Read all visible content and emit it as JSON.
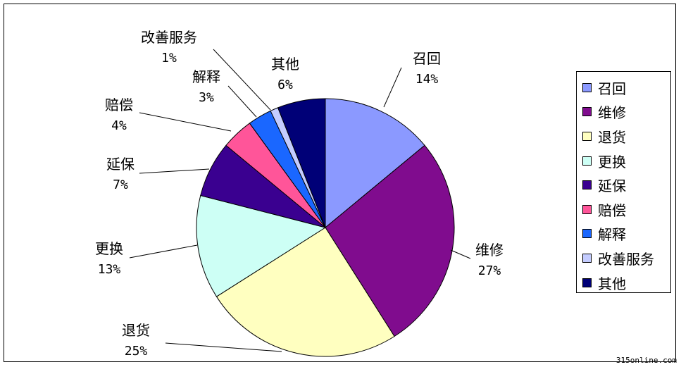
{
  "chart_data": {
    "type": "pie",
    "title": "",
    "legend_position": "right",
    "slices": [
      {
        "label": "召回",
        "value": 14,
        "value_label": "14%",
        "color": "#8b99ff"
      },
      {
        "label": "维修",
        "value": 27,
        "value_label": "27%",
        "color": "#800c8e"
      },
      {
        "label": "退货",
        "value": 25,
        "value_label": "25%",
        "color": "#ffffc0"
      },
      {
        "label": "更换",
        "value": 13,
        "value_label": "13%",
        "color": "#cdfff5"
      },
      {
        "label": "延保",
        "value": 7,
        "value_label": "7%",
        "color": "#3a0090"
      },
      {
        "label": "赔偿",
        "value": 4,
        "value_label": "4%",
        "color": "#ff5599"
      },
      {
        "label": "解释",
        "value": 3,
        "value_label": "3%",
        "color": "#1a67ff"
      },
      {
        "label": "改善服务",
        "value": 1,
        "value_label": "1%",
        "color": "#c4ccff"
      },
      {
        "label": "其他",
        "value": 6,
        "value_label": "6%",
        "color": "#000077"
      }
    ]
  },
  "watermark": "315online.com"
}
